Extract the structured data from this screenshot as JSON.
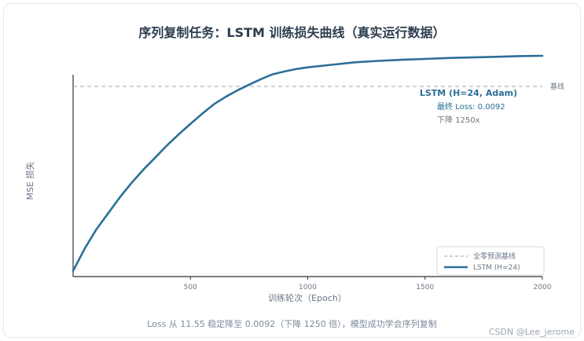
{
  "title": "序列复制任务：LSTM 训练损失曲线（真实运行数据）",
  "caption": "Loss 从 11.55 稳定降至 0.0092（下降 1250 倍），模型成功学会序列复制",
  "watermark": "CSDN @Lee_jerome",
  "colors": {
    "series": "#2b6f98",
    "baseline": "#b5b5b5",
    "title": "#2d3d4f"
  },
  "chart_data": {
    "type": "line",
    "title": "序列复制任务：LSTM 训练损失曲线（真实运行数据）",
    "xlabel": "训练轮次（Epoch）",
    "ylabel": "MSE 损失",
    "xlim": [
      0,
      2000
    ],
    "x_ticks": [
      "500",
      "1000",
      "1500",
      "2000"
    ],
    "y_scale": "log",
    "y_tick_labels_visible": false,
    "grid": false,
    "legend_position": "bottom-right",
    "series": [
      {
        "name": "LSTM (H=24)",
        "x": [
          0,
          50,
          100,
          150,
          200,
          250,
          300,
          350,
          400,
          450,
          500,
          550,
          600,
          650,
          700,
          750,
          800,
          850,
          900,
          950,
          1000,
          1100,
          1200,
          1300,
          1400,
          1500,
          1600,
          1700,
          1800,
          1900,
          2000
        ],
        "y": [
          11.55,
          5.5,
          2.9,
          1.7,
          1.0,
          0.62,
          0.4,
          0.27,
          0.18,
          0.125,
          0.088,
          0.063,
          0.046,
          0.036,
          0.029,
          0.024,
          0.02,
          0.017,
          0.0155,
          0.0143,
          0.0135,
          0.0124,
          0.0114,
          0.0109,
          0.0105,
          0.0102,
          0.0099,
          0.0097,
          0.0095,
          0.0093,
          0.0092
        ]
      }
    ],
    "baseline": {
      "name": "全零预测基线",
      "label": "基线",
      "y": 0.0254
    },
    "annotation": {
      "title": "LSTM (H=24, Adam)",
      "line1": "最终 Loss: 0.0092",
      "line2": "下降 1250x"
    }
  }
}
